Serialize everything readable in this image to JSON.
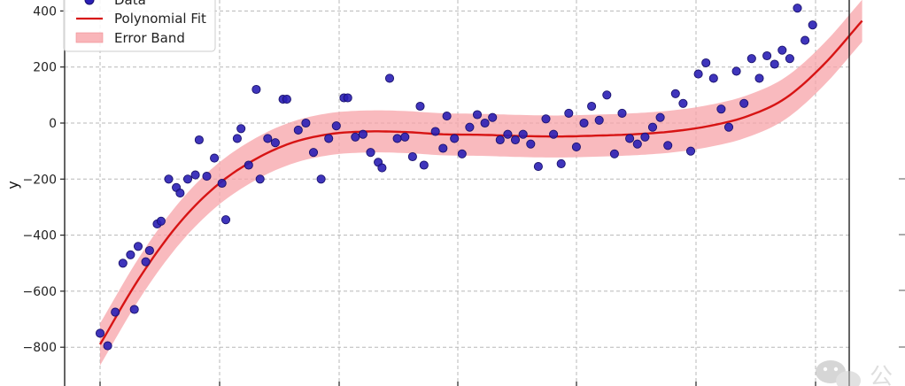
{
  "chart_data": {
    "type": "scatter",
    "title": "",
    "xlabel": "",
    "ylabel": "y",
    "x_range": [
      -5.3,
      5.4
    ],
    "ylim": [
      -930,
      430
    ],
    "y_ticks": [
      -800,
      -600,
      -400,
      -200,
      0,
      200,
      400
    ],
    "y_tick_labels": [
      "−800",
      "−600",
      "−400",
      "−200",
      "0",
      "200",
      "400"
    ],
    "x_gridlines": [
      -5,
      -3,
      -1,
      1,
      3,
      5
    ],
    "grid": true,
    "legend_position": "top-left",
    "legend": [
      {
        "label": "Data",
        "kind": "marker",
        "color": "#2a1fb5"
      },
      {
        "label": "Polynomial Fit",
        "kind": "line",
        "color": "#d71414"
      },
      {
        "label": "Error Band",
        "kind": "patch",
        "color": "#f7a3a8"
      }
    ],
    "fit": {
      "name": "Polynomial Fit",
      "color": "#d71414",
      "x": [
        -5.0,
        -4.5,
        -4.0,
        -3.5,
        -3.0,
        -2.5,
        -2.0,
        -1.5,
        -1.0,
        -0.5,
        0.0,
        0.5,
        1.0,
        1.5,
        2.0,
        2.5,
        3.0,
        3.5,
        4.0,
        4.5,
        5.0
      ],
      "y": [
        -790,
        -560,
        -370,
        -230,
        -135,
        -72,
        -40,
        -30,
        -32,
        -40,
        -42,
        -46,
        -48,
        -45,
        -40,
        -30,
        -10,
        25,
        90,
        210,
        365
      ]
    },
    "error_band": {
      "name": "Error Band",
      "color": "#f7a3a8",
      "half_width": 75
    },
    "series": [
      {
        "name": "Data",
        "color": "#2a1fb5",
        "points": [
          [
            -5.0,
            -750
          ],
          [
            -4.9,
            -795
          ],
          [
            -4.8,
            -675
          ],
          [
            -4.7,
            -500
          ],
          [
            -4.6,
            -470
          ],
          [
            -4.55,
            -665
          ],
          [
            -4.5,
            -440
          ],
          [
            -4.4,
            -495
          ],
          [
            -4.35,
            -455
          ],
          [
            -4.25,
            -360
          ],
          [
            -4.2,
            -350
          ],
          [
            -4.1,
            -200
          ],
          [
            -4.0,
            -230
          ],
          [
            -3.95,
            -250
          ],
          [
            -3.85,
            -200
          ],
          [
            -3.75,
            -185
          ],
          [
            -3.7,
            -60
          ],
          [
            -3.6,
            -190
          ],
          [
            -3.5,
            -125
          ],
          [
            -3.4,
            -215
          ],
          [
            -3.35,
            -345
          ],
          [
            -3.2,
            -55
          ],
          [
            -3.15,
            -20
          ],
          [
            -3.05,
            -150
          ],
          [
            -2.95,
            120
          ],
          [
            -2.9,
            -200
          ],
          [
            -2.8,
            -55
          ],
          [
            -2.7,
            -70
          ],
          [
            -2.6,
            85
          ],
          [
            -2.55,
            85
          ],
          [
            -2.4,
            -25
          ],
          [
            -2.3,
            0
          ],
          [
            -2.2,
            -105
          ],
          [
            -2.1,
            -200
          ],
          [
            -2.0,
            -55
          ],
          [
            -1.9,
            -10
          ],
          [
            -1.8,
            90
          ],
          [
            -1.75,
            90
          ],
          [
            -1.65,
            -50
          ],
          [
            -1.55,
            -40
          ],
          [
            -1.45,
            -105
          ],
          [
            -1.35,
            -140
          ],
          [
            -1.3,
            -160
          ],
          [
            -1.2,
            160
          ],
          [
            -1.1,
            -55
          ],
          [
            -1.0,
            -50
          ],
          [
            -0.9,
            -120
          ],
          [
            -0.8,
            60
          ],
          [
            -0.75,
            -150
          ],
          [
            -0.6,
            -30
          ],
          [
            -0.5,
            -90
          ],
          [
            -0.45,
            25
          ],
          [
            -0.35,
            -55
          ],
          [
            -0.25,
            -110
          ],
          [
            -0.15,
            -15
          ],
          [
            -0.05,
            30
          ],
          [
            0.05,
            0
          ],
          [
            0.15,
            20
          ],
          [
            0.25,
            -60
          ],
          [
            0.35,
            -40
          ],
          [
            0.45,
            -60
          ],
          [
            0.55,
            -40
          ],
          [
            0.65,
            -75
          ],
          [
            0.75,
            -155
          ],
          [
            0.85,
            15
          ],
          [
            0.95,
            -40
          ],
          [
            1.05,
            -145
          ],
          [
            1.15,
            35
          ],
          [
            1.25,
            -85
          ],
          [
            1.35,
            0
          ],
          [
            1.45,
            60
          ],
          [
            1.55,
            10
          ],
          [
            1.65,
            100
          ],
          [
            1.75,
            -110
          ],
          [
            1.85,
            35
          ],
          [
            1.95,
            -55
          ],
          [
            2.05,
            -75
          ],
          [
            2.15,
            -50
          ],
          [
            2.25,
            -15
          ],
          [
            2.35,
            20
          ],
          [
            2.45,
            -80
          ],
          [
            2.55,
            105
          ],
          [
            2.65,
            70
          ],
          [
            2.75,
            -100
          ],
          [
            2.85,
            175
          ],
          [
            2.95,
            215
          ],
          [
            3.05,
            160
          ],
          [
            3.15,
            50
          ],
          [
            3.25,
            -15
          ],
          [
            3.35,
            185
          ],
          [
            3.45,
            70
          ],
          [
            3.55,
            230
          ],
          [
            3.65,
            160
          ],
          [
            3.75,
            240
          ],
          [
            3.85,
            210
          ],
          [
            3.95,
            260
          ],
          [
            4.05,
            230
          ],
          [
            4.15,
            410
          ],
          [
            4.25,
            295
          ],
          [
            4.35,
            350
          ]
        ]
      }
    ]
  },
  "watermark": {
    "text": "公",
    "icon": "wechat-icon"
  }
}
